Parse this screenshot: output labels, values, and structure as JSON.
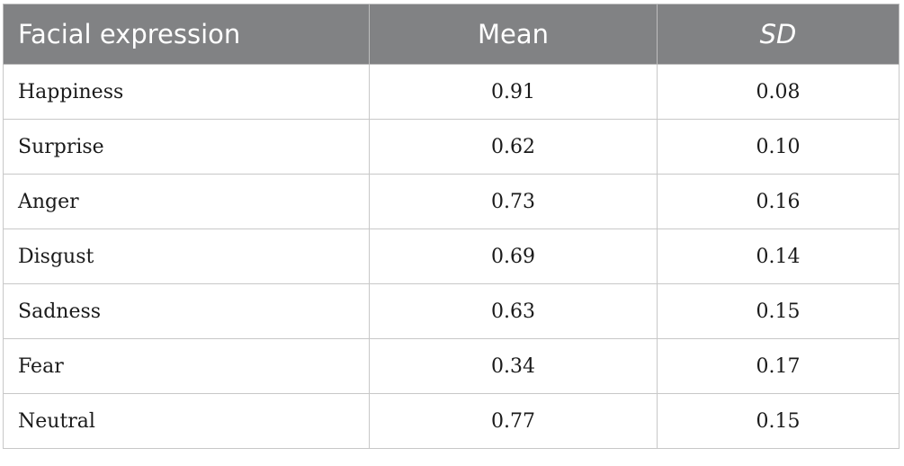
{
  "table": {
    "headers": {
      "label": "Facial expression",
      "mean": "Mean",
      "sd": "SD"
    },
    "rows": [
      {
        "expression": "Happiness",
        "mean": "0.91",
        "sd": "0.08"
      },
      {
        "expression": "Surprise",
        "mean": "0.62",
        "sd": "0.10"
      },
      {
        "expression": "Anger",
        "mean": "0.73",
        "sd": "0.16"
      },
      {
        "expression": "Disgust",
        "mean": "0.69",
        "sd": "0.14"
      },
      {
        "expression": "Sadness",
        "mean": "0.63",
        "sd": "0.15"
      },
      {
        "expression": "Fear",
        "mean": "0.34",
        "sd": "0.17"
      },
      {
        "expression": "Neutral",
        "mean": "0.77",
        "sd": "0.15"
      }
    ]
  },
  "colors": {
    "header_background": "#818284",
    "header_text": "#ffffff",
    "grid_lines": "#c8c8c8"
  }
}
